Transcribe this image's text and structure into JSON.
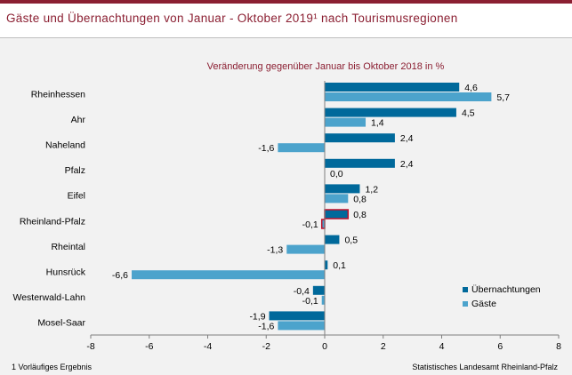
{
  "title": "Gäste und Übernachtungen von Januar - Oktober 2019¹ nach Tourismusregionen",
  "footnote": "1 Vorläufiges Ergebnis",
  "source": "Statistisches Landesamt Rheinland-Pfalz",
  "colors": {
    "brand": "#8b1f32",
    "uebernachtungen": "#00699b",
    "gaeste": "#4ca3cc",
    "highlight_outline": "#c0102a"
  },
  "chart_data": {
    "type": "bar",
    "orientation": "horizontal",
    "subtitle": "Veränderung gegenüber Januar bis Oktober 2018 in %",
    "categories": [
      "Rheinhessen",
      "Ahr",
      "Naheland",
      "Pfalz",
      "Eifel",
      "Rheinland-Pfalz",
      "Rheintal",
      "Hunsrück",
      "Westerwald-Lahn",
      "Mosel-Saar"
    ],
    "series": [
      {
        "name": "Übernachtungen",
        "values": [
          4.6,
          4.5,
          2.4,
          2.4,
          1.2,
          0.8,
          0.5,
          0.1,
          -0.4,
          -1.9
        ],
        "labels": [
          "4,6",
          "4,5",
          "2,4",
          "2,4",
          "1,2",
          "0,8",
          "0,5",
          "0,1",
          "-0,4",
          "-1,9"
        ]
      },
      {
        "name": "Gäste",
        "values": [
          5.7,
          1.4,
          -1.6,
          0.0,
          0.8,
          -0.1,
          -1.3,
          -6.6,
          -0.1,
          -1.6
        ],
        "labels": [
          "5,7",
          "1,4",
          "-1,6",
          "0,0",
          "0,8",
          "-0,1",
          "-1,3",
          "-6,6",
          "-0,1",
          "-1,6"
        ]
      }
    ],
    "highlight_category": "Rheinland-Pfalz",
    "xlim": [
      -8,
      8
    ],
    "xticks": [
      -8,
      -6,
      -4,
      -2,
      0,
      2,
      4,
      6,
      8
    ],
    "xtick_labels": [
      "-8",
      "-6",
      "-4",
      "-2",
      "0",
      "2",
      "4",
      "6",
      "8"
    ],
    "grid": false,
    "legend_position": "bottom-right"
  }
}
